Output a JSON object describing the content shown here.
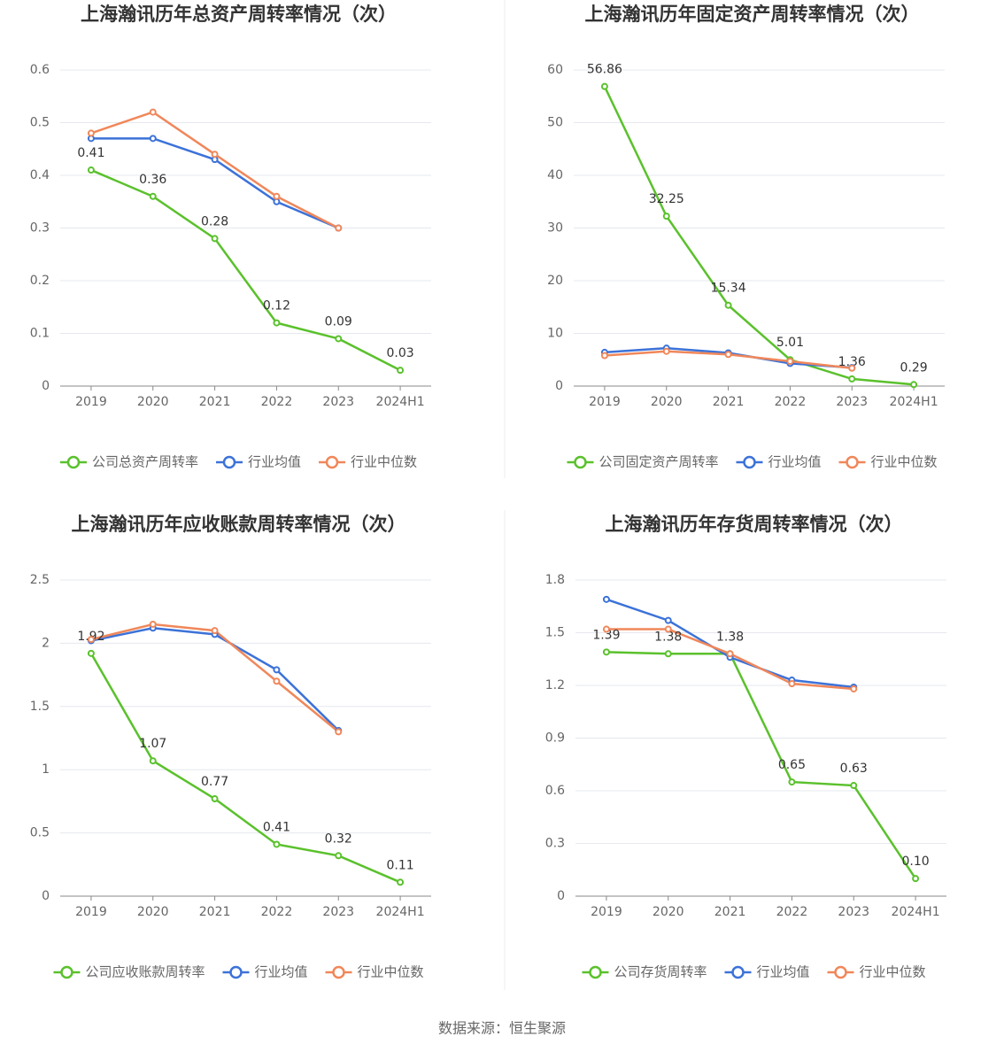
{
  "chart_data": [
    {
      "type": "line",
      "title": "上海瀚讯历年总资产周转率情况（次）",
      "categories": [
        "2019",
        "2020",
        "2021",
        "2022",
        "2023",
        "2024H1"
      ],
      "series": [
        {
          "name": "公司总资产周转率",
          "color": "#5ac12c",
          "values": [
            0.41,
            0.36,
            0.28,
            0.12,
            0.09,
            0.03
          ],
          "value_labels": [
            "0.41",
            "0.36",
            "0.28",
            "0.12",
            "0.09",
            "0.03"
          ]
        },
        {
          "name": "行业均值",
          "color": "#3c72d8",
          "values": [
            0.47,
            0.47,
            0.43,
            0.35,
            0.3,
            null
          ]
        },
        {
          "name": "行业中位数",
          "color": "#f0875a",
          "values": [
            0.48,
            0.52,
            0.44,
            0.36,
            0.3,
            null
          ]
        }
      ],
      "ylim": [
        0,
        0.6
      ],
      "yticks": [
        0,
        0.1,
        0.2,
        0.3,
        0.4,
        0.5,
        0.6
      ],
      "grid": true
    },
    {
      "type": "line",
      "title": "上海瀚讯历年固定资产周转率情况（次）",
      "categories": [
        "2019",
        "2020",
        "2021",
        "2022",
        "2023",
        "2024H1"
      ],
      "series": [
        {
          "name": "公司固定资产周转率",
          "color": "#5ac12c",
          "values": [
            56.86,
            32.25,
            15.34,
            5.01,
            1.36,
            0.29
          ],
          "value_labels": [
            "56.86",
            "32.25",
            "15.34",
            "5.01",
            "1.36",
            "0.29"
          ]
        },
        {
          "name": "行业均值",
          "color": "#3c72d8",
          "values": [
            6.4,
            7.2,
            6.3,
            4.3,
            3.5,
            null
          ]
        },
        {
          "name": "行业中位数",
          "color": "#f0875a",
          "values": [
            5.8,
            6.6,
            6.0,
            4.7,
            3.4,
            null
          ]
        }
      ],
      "ylim": [
        0,
        60
      ],
      "yticks": [
        0,
        10,
        20,
        30,
        40,
        50,
        60
      ],
      "grid": true
    },
    {
      "type": "line",
      "title": "上海瀚讯历年应收账款周转率情况（次）",
      "categories": [
        "2019",
        "2020",
        "2021",
        "2022",
        "2023",
        "2024H1"
      ],
      "series": [
        {
          "name": "公司应收账款周转率",
          "color": "#5ac12c",
          "values": [
            1.92,
            1.07,
            0.77,
            0.41,
            0.32,
            0.11
          ],
          "value_labels": [
            "1.92",
            "1.07",
            "0.77",
            "0.41",
            "0.32",
            "0.11"
          ]
        },
        {
          "name": "行业均值",
          "color": "#3c72d8",
          "values": [
            2.02,
            2.12,
            2.07,
            1.79,
            1.31,
            null
          ]
        },
        {
          "name": "行业中位数",
          "color": "#f0875a",
          "values": [
            2.03,
            2.15,
            2.1,
            1.7,
            1.3,
            null
          ]
        }
      ],
      "ylim": [
        0,
        2.5
      ],
      "yticks": [
        0,
        0.5,
        1,
        1.5,
        2,
        2.5
      ],
      "grid": true
    },
    {
      "type": "line",
      "title": "上海瀚讯历年存货周转率情况（次）",
      "categories": [
        "2019",
        "2020",
        "2021",
        "2022",
        "2023",
        "2024H1"
      ],
      "series": [
        {
          "name": "公司存货周转率",
          "color": "#5ac12c",
          "values": [
            1.39,
            1.38,
            1.38,
            0.65,
            0.63,
            0.1
          ],
          "value_labels": [
            "1.39",
            "1.38",
            "1.38",
            "0.65",
            "0.63",
            "0.10"
          ]
        },
        {
          "name": "行业均值",
          "color": "#3c72d8",
          "values": [
            1.69,
            1.57,
            1.36,
            1.23,
            1.19,
            null
          ]
        },
        {
          "name": "行业中位数",
          "color": "#f0875a",
          "values": [
            1.52,
            1.52,
            1.38,
            1.21,
            1.18,
            null
          ]
        }
      ],
      "ylim": [
        0,
        1.8
      ],
      "yticks": [
        0,
        0.3,
        0.6,
        0.9,
        1.2,
        1.5,
        1.8
      ],
      "grid": true
    }
  ],
  "source": "数据来源：恒生聚源"
}
